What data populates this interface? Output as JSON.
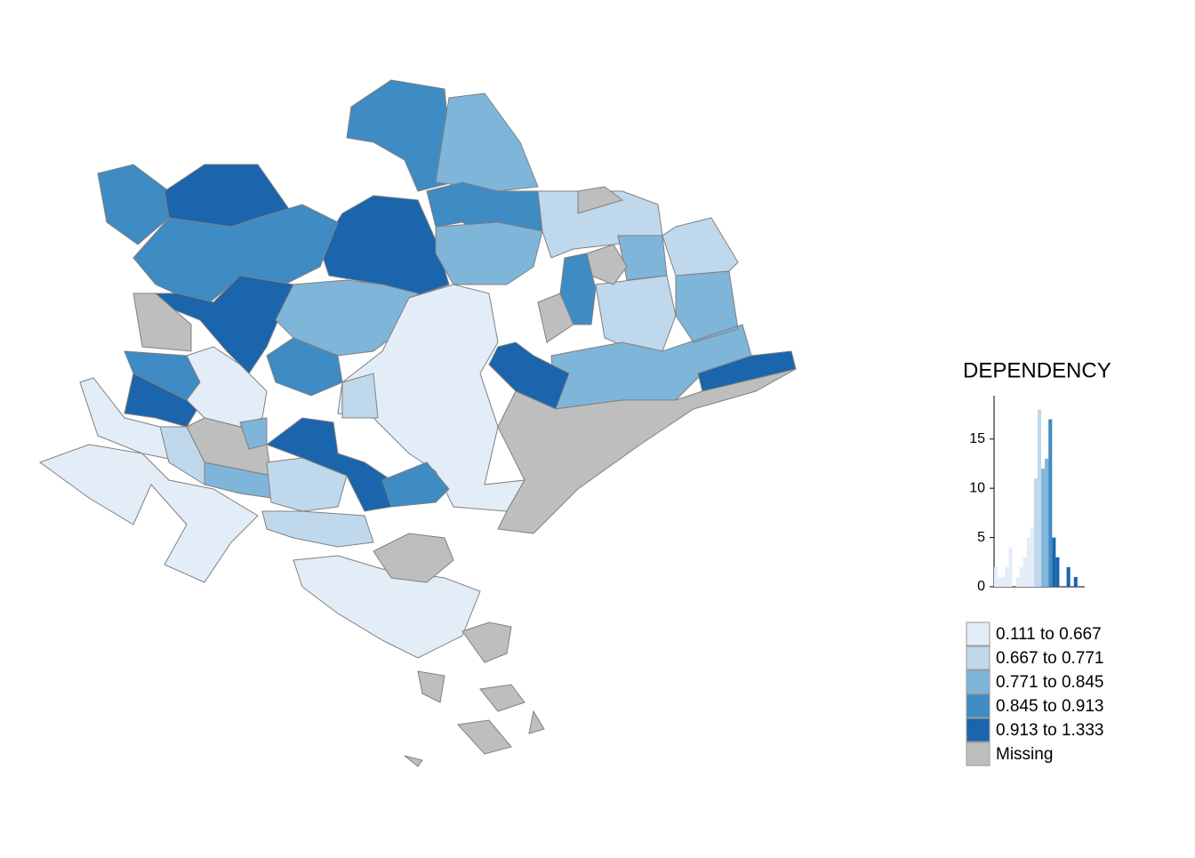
{
  "chart_data": {
    "type": "histogram",
    "title": "DEPENDENCY",
    "bins": [
      0.1,
      0.15,
      0.2,
      0.25,
      0.3,
      0.35,
      0.4,
      0.45,
      0.5,
      0.55,
      0.6,
      0.65,
      0.7,
      0.75,
      0.8,
      0.85,
      0.9,
      0.95,
      1.0,
      1.05,
      1.1,
      1.15,
      1.2,
      1.25,
      1.3,
      1.35
    ],
    "values": [
      2,
      1,
      1,
      2,
      4,
      0,
      1,
      2,
      3,
      5,
      6,
      11,
      18,
      12,
      13,
      17,
      5,
      3,
      0,
      0,
      2,
      0,
      1,
      0,
      0
    ],
    "colors": [
      "#e3edf8",
      "#e3edf8",
      "#e3edf8",
      "#e3edf8",
      "#e3edf8",
      "#e3edf8",
      "#e3edf8",
      "#e3edf8",
      "#e3edf8",
      "#e3edf8",
      "#e3edf8",
      "#c0d8ec",
      "#c0d8ec",
      "#7fb5d9",
      "#7fb5d9",
      "#3f8bc3",
      "#1a65ac",
      "#1a65ac",
      "#1a65ac",
      "#1a65ac",
      "#1a65ac",
      "#1a65ac",
      "#1a65ac",
      "#1a65ac",
      "#1a65ac"
    ],
    "xlim": [
      0.1,
      1.35
    ],
    "ylim": [
      0,
      19.4
    ],
    "yticks": [
      0,
      5,
      10,
      15
    ],
    "legend": [
      {
        "label": "0.111 to 0.667",
        "color": "#e3edf8"
      },
      {
        "label": "0.667 to 0.771",
        "color": "#c0d8ec"
      },
      {
        "label": "0.771 to 0.845",
        "color": "#7fb5d9"
      },
      {
        "label": "0.845 to 0.913",
        "color": "#3f8bc3"
      },
      {
        "label": "0.913 to 1.333",
        "color": "#1a65ac"
      },
      {
        "label": "Missing",
        "color": "#bebebe"
      }
    ]
  }
}
